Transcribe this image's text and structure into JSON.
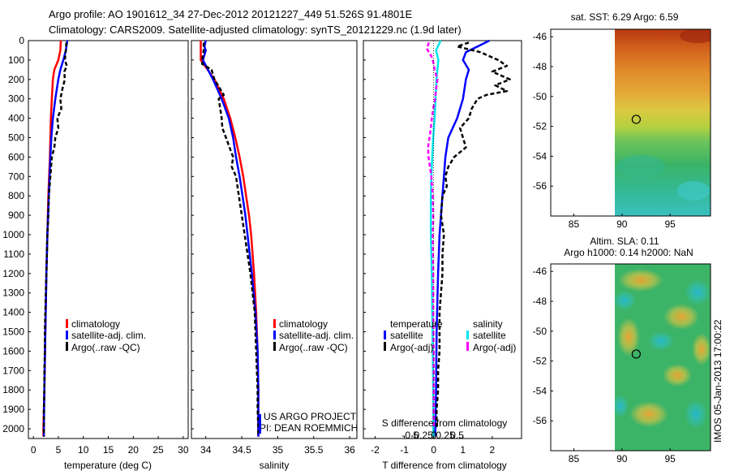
{
  "header": {
    "line1": "Argo profile: AO 1901612_34 27-Dec-2012 20121227_449 51.526S 91.4801E",
    "line2": "Climatology: CARS2009. Satellite-adjusted climatology: synTS_20121229.nc (1.9d later)"
  },
  "colors": {
    "climatology": "#ff0000",
    "satellite": "#0000ff",
    "argo": "#000000",
    "sat_salinity": "#00e5ee",
    "argo_salinity_diff": "#ff00ff"
  },
  "legends": {
    "climatology": "climatology",
    "satellite_adj": "satellite-adj. clim.",
    "argo_raw": "Argo(..raw -QC)",
    "temperature": "temperature",
    "salinity": "salinity",
    "satellite": "satellite",
    "argo_adj": "Argo(-adj)"
  },
  "credits": {
    "project": "US ARGO PROJECT",
    "pi": "PI: DEAN ROEMMICH",
    "timestamp": "IMOS 05-Jan-2013 17:00:22"
  },
  "maps": {
    "sst_title": "sat. SST: 6.29 Argo: 6.59",
    "sla_title1": "Altim. SLA: 0.11",
    "sla_title2": "Argo h1000: 0.14 h2000: NaN",
    "x_ticks": [
      "85",
      "90",
      "95"
    ],
    "y_ticks": [
      "-46",
      "-48",
      "-50",
      "-52",
      "-54",
      "-56"
    ],
    "profile_location": {
      "lon": 91.48,
      "lat": -51.53
    }
  },
  "chart_data": [
    {
      "type": "line",
      "xlabel": "temperature (deg C)",
      "xlim": [
        -1,
        31
      ],
      "ylim": [
        2050,
        0
      ],
      "x_ticks": [
        "0",
        "5",
        "10",
        "15",
        "20",
        "25",
        "30"
      ],
      "y_ticks": [
        "0",
        "100",
        "200",
        "300",
        "400",
        "500",
        "600",
        "700",
        "800",
        "900",
        "1000",
        "1100",
        "1200",
        "1300",
        "1400",
        "1500",
        "1600",
        "1700",
        "1800",
        "1900",
        "2000"
      ],
      "series": [
        {
          "name": "climatology",
          "depth": [
            0,
            50,
            100,
            150,
            200,
            300,
            400,
            500,
            600,
            800,
            1000,
            1200,
            1500,
            1800,
            2000,
            2040
          ],
          "values": [
            5.5,
            5.4,
            5.0,
            4.2,
            3.9,
            3.7,
            3.5,
            3.4,
            3.3,
            3.0,
            2.8,
            2.6,
            2.4,
            2.2,
            2.0,
            2.0
          ]
        },
        {
          "name": "satellite-adj. clim.",
          "depth": [
            0,
            50,
            100,
            150,
            200,
            300,
            400,
            500,
            600,
            800,
            1000,
            1200,
            1500,
            1800,
            2000,
            2040
          ],
          "values": [
            6.8,
            6.5,
            6.0,
            5.4,
            5.0,
            4.4,
            3.9,
            3.6,
            3.4,
            3.1,
            2.8,
            2.6,
            2.4,
            2.2,
            2.1,
            2.1
          ]
        },
        {
          "name": "Argo(..raw -QC)",
          "depth": [
            10,
            50,
            100,
            130,
            160,
            200,
            250,
            300,
            350,
            400,
            450,
            500,
            550,
            600,
            700,
            800,
            900,
            1000,
            1100,
            1200,
            1300,
            1400,
            1500,
            1600,
            1700,
            1800,
            1900,
            2000,
            2040
          ],
          "values": [
            6.6,
            6.5,
            6.3,
            6.7,
            6.2,
            6.3,
            5.8,
            5.4,
            5.6,
            4.8,
            5.0,
            4.4,
            4.2,
            3.7,
            3.4,
            3.1,
            3.0,
            2.8,
            2.7,
            2.6,
            2.5,
            2.4,
            2.3,
            2.3,
            2.2,
            2.2,
            2.1,
            2.1,
            2.1
          ]
        }
      ]
    },
    {
      "type": "line",
      "xlabel": "salinity",
      "xlim": [
        33.8,
        36.1
      ],
      "ylim": [
        2050,
        0
      ],
      "x_ticks": [
        "34",
        "34.5",
        "35",
        "35.5",
        "36"
      ],
      "series": [
        {
          "name": "climatology",
          "depth": [
            0,
            50,
            100,
            200,
            300,
            400,
            500,
            600,
            700,
            800,
            900,
            1000,
            1200,
            1400,
            1600,
            1800,
            2000,
            2040
          ],
          "values": [
            33.93,
            33.93,
            33.93,
            34.12,
            34.25,
            34.34,
            34.41,
            34.47,
            34.52,
            34.56,
            34.6,
            34.63,
            34.67,
            34.7,
            34.72,
            34.73,
            34.73,
            34.73
          ]
        },
        {
          "name": "satellite-adj. clim.",
          "depth": [
            0,
            30,
            50,
            100,
            200,
            300,
            400,
            500,
            600,
            700,
            800,
            900,
            1000,
            1200,
            1400,
            1600,
            1800,
            2000,
            2040
          ],
          "values": [
            34.0,
            33.98,
            34.0,
            33.96,
            34.1,
            34.22,
            34.32,
            34.38,
            34.42,
            34.47,
            34.51,
            34.55,
            34.58,
            34.64,
            34.69,
            34.72,
            34.73,
            34.73,
            34.73
          ]
        },
        {
          "name": "Argo(..raw -QC)",
          "depth": [
            10,
            50,
            100,
            120,
            150,
            200,
            250,
            280,
            300,
            350,
            400,
            450,
            500,
            550,
            600,
            650,
            700,
            800,
            900,
            1000,
            1100,
            1200,
            1300,
            1400,
            1500,
            1600,
            1700,
            1800,
            1900,
            2000,
            2040
          ],
          "values": [
            33.97,
            33.97,
            33.95,
            33.95,
            34.08,
            34.12,
            34.2,
            34.25,
            34.18,
            34.2,
            34.22,
            34.23,
            34.28,
            34.33,
            34.38,
            34.36,
            34.42,
            34.46,
            34.5,
            34.54,
            34.58,
            34.62,
            34.65,
            34.68,
            34.69,
            34.7,
            34.71,
            34.72,
            34.72,
            34.73,
            34.73
          ]
        }
      ]
    },
    {
      "type": "line",
      "xlabel": "T difference from climatology",
      "x2label": "S difference from climatology",
      "xlim": [
        -2.4,
        3.0
      ],
      "ylim": [
        2050,
        0
      ],
      "x_ticks": [
        "-2",
        "-1",
        "0",
        "1",
        "2"
      ],
      "x2_ticks": [
        "-0.5",
        "-0.25",
        "0",
        "0.25",
        "0.5"
      ],
      "series": [
        {
          "name": "temperature satellite",
          "depth": [
            0,
            30,
            60,
            100,
            150,
            200,
            300,
            400,
            500,
            600,
            700,
            800,
            1000,
            1200,
            1500,
            1800,
            2000,
            2040
          ],
          "values": [
            1.9,
            1.5,
            1.1,
            1.0,
            1.2,
            1.1,
            1.0,
            0.8,
            0.5,
            0.4,
            0.35,
            0.3,
            0.2,
            0.15,
            0.1,
            0.08,
            0.06,
            0.05
          ]
        },
        {
          "name": "temperature Argo(-adj)",
          "depth": [
            10,
            30,
            60,
            100,
            130,
            160,
            200,
            230,
            260,
            280,
            300,
            350,
            400,
            450,
            500,
            550,
            600,
            650,
            700,
            750,
            800,
            900,
            1000,
            1100,
            1200,
            1300,
            1400,
            1500,
            1600,
            1700,
            1800,
            1900,
            2000
          ],
          "values": [
            1.2,
            0.8,
            1.6,
            2.2,
            2.5,
            2.0,
            2.6,
            2.1,
            2.5,
            1.8,
            1.5,
            1.3,
            1.2,
            0.9,
            1.0,
            1.1,
            0.7,
            0.5,
            0.4,
            0.45,
            0.3,
            0.25,
            0.35,
            0.3,
            0.3,
            0.25,
            0.2,
            0.2,
            0.2,
            0.15,
            0.15,
            0.1,
            0.1
          ]
        },
        {
          "name": "salinity satellite",
          "depth": [
            0,
            50,
            100,
            200,
            300,
            400,
            500,
            600,
            700,
            800,
            1000,
            1200,
            1400,
            1600,
            1800,
            2000,
            2040
          ],
          "values": [
            0.15,
            0.05,
            0.1,
            0.06,
            0.04,
            0.02,
            -0.01,
            -0.03,
            -0.05,
            -0.06,
            -0.06,
            -0.04,
            -0.03,
            -0.02,
            -0.01,
            -0.01,
            0.0
          ]
        },
        {
          "name": "salinity Argo(-adj)",
          "depth": [
            10,
            40,
            80,
            120,
            150,
            200,
            250,
            300,
            350,
            400,
            450,
            500,
            550,
            600,
            700,
            800,
            900,
            1000,
            1200,
            1400,
            1600,
            1800,
            2000
          ],
          "values": [
            -0.1,
            -0.15,
            -0.05,
            0.0,
            0.02,
            0.08,
            0.05,
            0.03,
            -0.01,
            -0.04,
            -0.06,
            -0.09,
            -0.12,
            -0.11,
            -0.05,
            -0.02,
            -0.01,
            -0.02,
            -0.01,
            -0.01,
            0.0,
            0.0,
            0.0
          ]
        }
      ]
    }
  ]
}
